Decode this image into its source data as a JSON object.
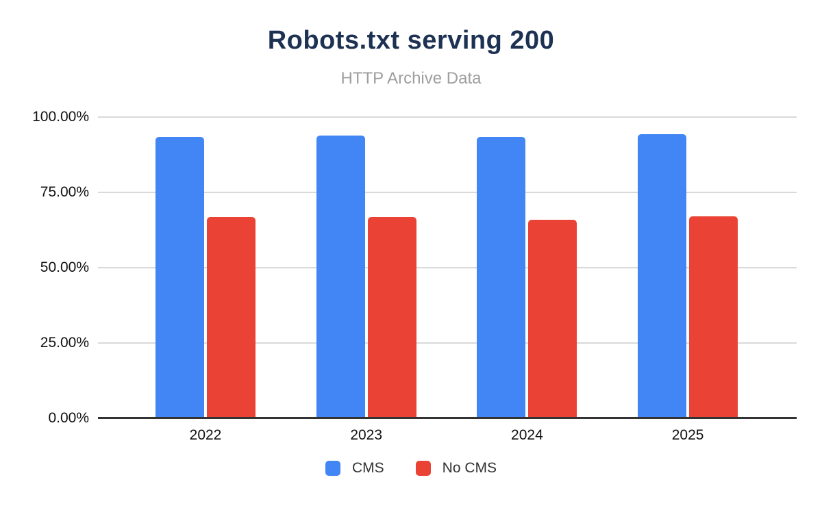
{
  "chart": {
    "title": "Robots.txt serving 200",
    "subtitle": "HTTP Archive Data"
  },
  "chart_data": {
    "type": "bar",
    "title": "Robots.txt serving 200",
    "subtitle": "HTTP Archive Data",
    "categories": [
      "2022",
      "2023",
      "2024",
      "2025"
    ],
    "series": [
      {
        "name": "CMS",
        "color": "#4285F4",
        "values": [
          93.5,
          93.9,
          93.4,
          94.4
        ]
      },
      {
        "name": "No CMS",
        "color": "#EA4335",
        "values": [
          66.8,
          66.8,
          66.0,
          67.0
        ]
      }
    ],
    "xlabel": "",
    "ylabel": "",
    "ylim": [
      0,
      100
    ],
    "yticks": [
      0,
      25,
      50,
      75,
      100
    ],
    "ytick_labels": [
      "0.00%",
      "25.00%",
      "50.00%",
      "75.00%",
      "100.00%"
    ],
    "grid": true,
    "legend_position": "bottom"
  },
  "colors": {
    "title_text": "#1d3153",
    "subtitle_text": "#9e9e9e",
    "gridline": "#d9d9d9",
    "axis_line": "#333333",
    "axis_text": "#111111",
    "background": "#ffffff"
  }
}
